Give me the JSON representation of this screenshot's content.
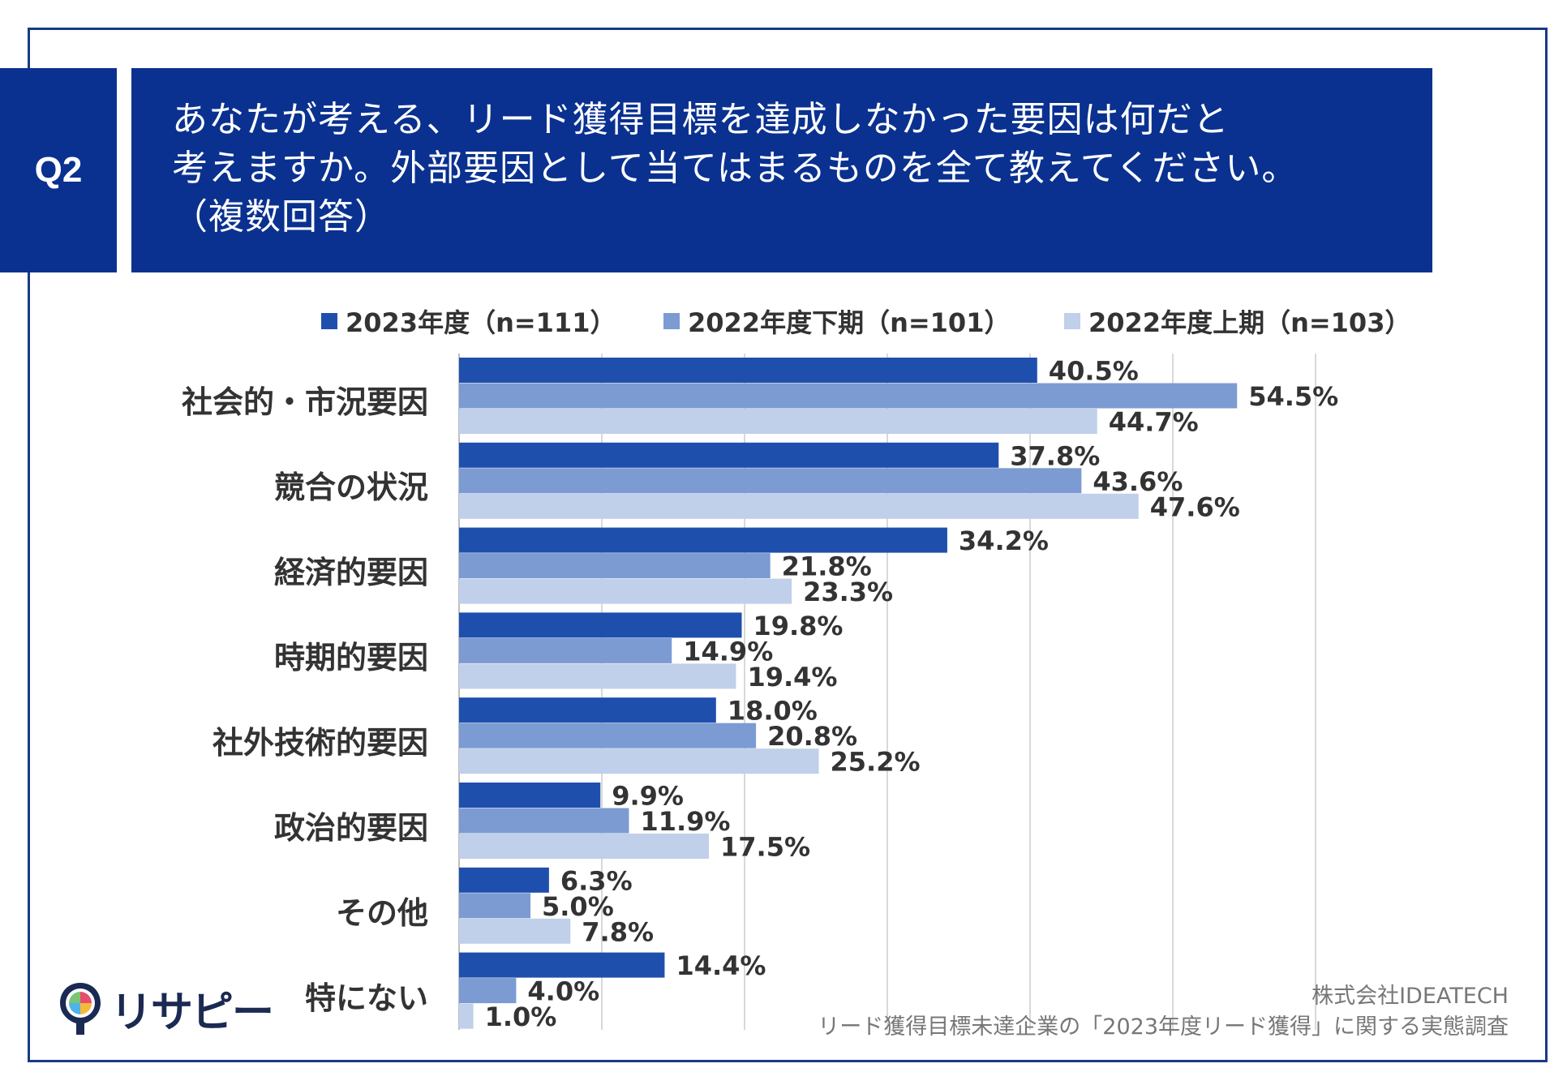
{
  "question": {
    "label": "Q2",
    "line1": "あなたが考える、リード獲得目標を達成しなかった要因は何だと",
    "line2": "考えますか。外部要因として当てはまるものを全て教えてください。",
    "line3": "（複数回答）"
  },
  "legend": [
    {
      "label": "2023年度（n=111）",
      "color": "#1f4fad"
    },
    {
      "label": "2022年度下期（n=101）",
      "color": "#7b9bd2"
    },
    {
      "label": "2022年度上期（n=103）",
      "color": "#c0cfea"
    }
  ],
  "chart_data": {
    "type": "bar",
    "orientation": "horizontal",
    "unit": "%",
    "xlim": [
      0,
      60
    ],
    "grid": true,
    "categories": [
      "社会的・市況要因",
      "競合の状況",
      "経済的要因",
      "時期的要因",
      "社外技術的要因",
      "政治的要因",
      "その他",
      "特にない"
    ],
    "series": [
      {
        "name": "2023年度（n=111）",
        "color": "#1f4fad",
        "values": [
          40.5,
          37.8,
          34.2,
          19.8,
          18.0,
          9.9,
          6.3,
          14.4
        ],
        "labels": [
          "40.5%",
          "37.8%",
          "34.2%",
          "19.8%",
          "18.0%",
          "9.9%",
          "6.3%",
          "14.4%"
        ]
      },
      {
        "name": "2022年度下期（n=101）",
        "color": "#7b9bd2",
        "values": [
          54.5,
          43.6,
          21.8,
          14.9,
          20.8,
          11.9,
          5.0,
          4.0
        ],
        "labels": [
          "54.5%",
          "43.6%",
          "21.8%",
          "14.9%",
          "20.8%",
          "11.9%",
          "5.0%",
          "4.0%"
        ]
      },
      {
        "name": "2022年度上期（n=103）",
        "color": "#c0cfea",
        "values": [
          44.7,
          47.6,
          23.3,
          19.4,
          25.2,
          17.5,
          7.8,
          1.0
        ],
        "labels": [
          "44.7%",
          "47.6%",
          "23.3%",
          "19.4%",
          "25.2%",
          "17.5%",
          "7.8%",
          "1.0%"
        ]
      }
    ]
  },
  "credit": {
    "company": "株式会社IDEATECH",
    "survey": "リード獲得目標未達企業の「2023年度リード獲得」に関する実態調査"
  },
  "logo": {
    "text": "リサピー"
  }
}
